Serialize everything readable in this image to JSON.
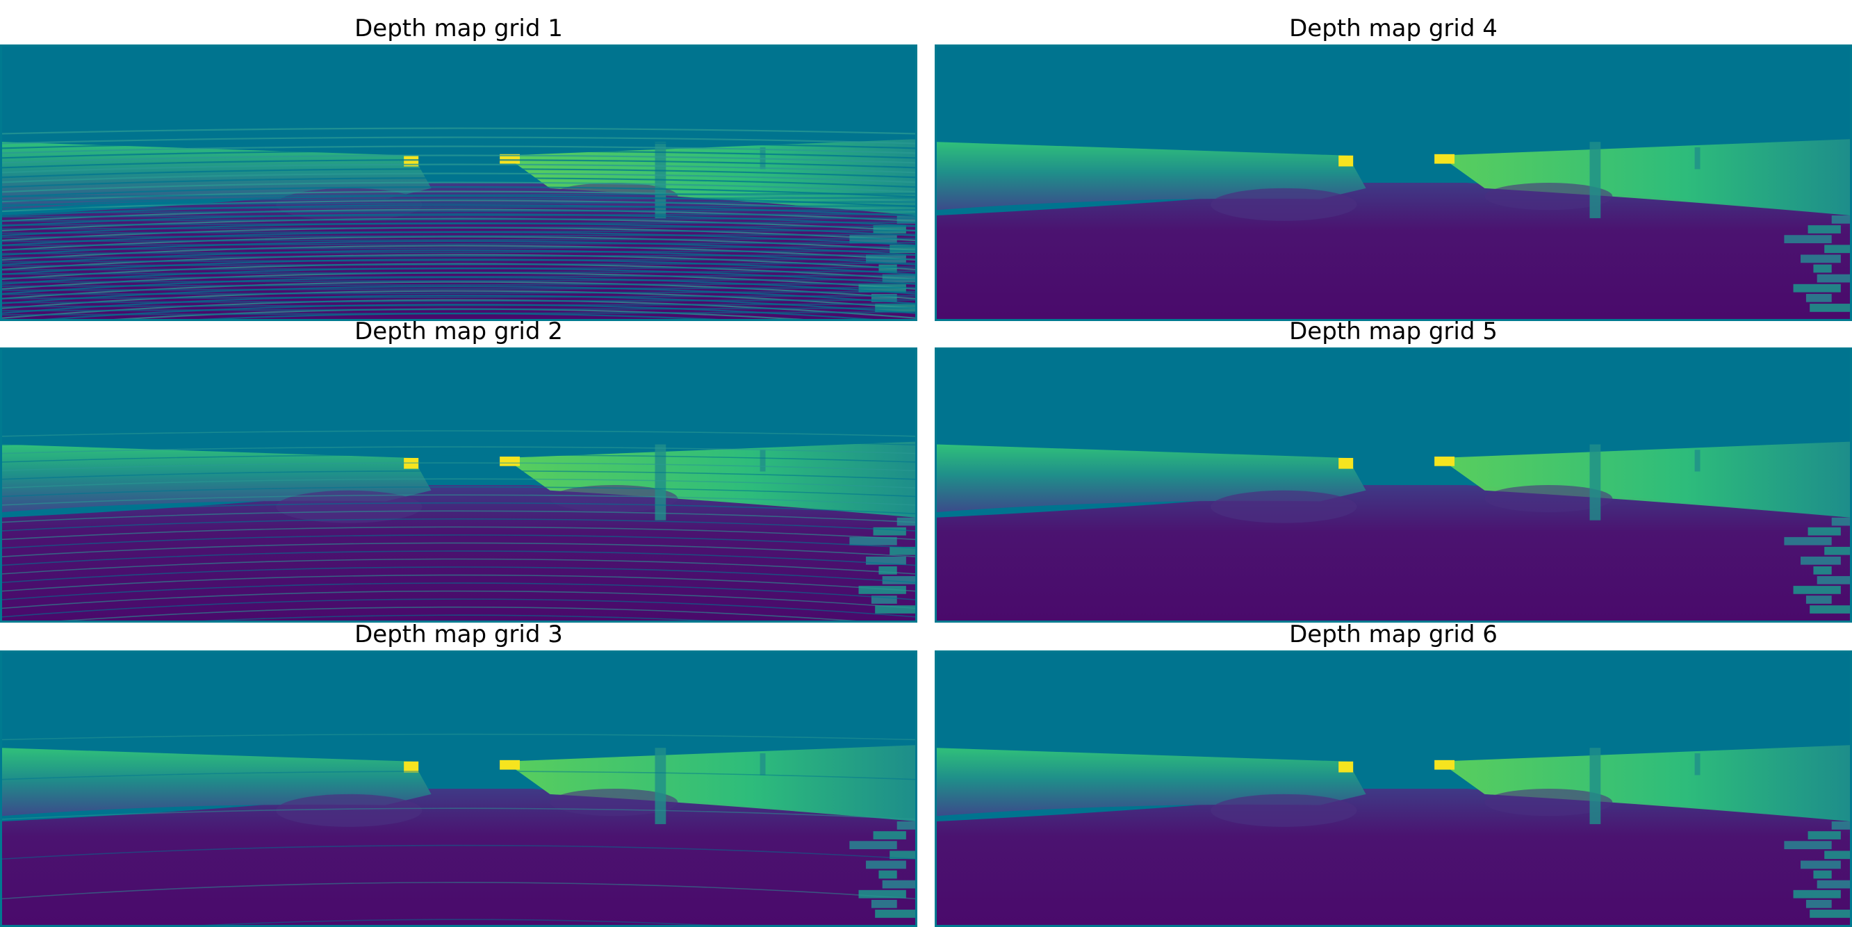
{
  "figure": {
    "panels": [
      {
        "id": "grid1",
        "title": "Depth map grid 1",
        "density": "sparse"
      },
      {
        "id": "grid2",
        "title": "Depth map grid 2",
        "density": "semi-dense"
      },
      {
        "id": "grid3",
        "title": "Depth map grid 3",
        "density": "dense-lines"
      },
      {
        "id": "grid4",
        "title": "Depth map grid 4",
        "density": "dense"
      },
      {
        "id": "grid5",
        "title": "Depth map grid 5",
        "density": "dense"
      },
      {
        "id": "grid6",
        "title": "Depth map grid 6",
        "density": "dense"
      }
    ],
    "colors": {
      "sky": "#00748f",
      "ground_dark": "#4a0a6b",
      "ground_mid": "#3b4b8a",
      "wall_low": "#1f8f8a",
      "wall_high": "#30c07a",
      "highlight": "#f6e41f",
      "frame": "#007a90"
    }
  }
}
